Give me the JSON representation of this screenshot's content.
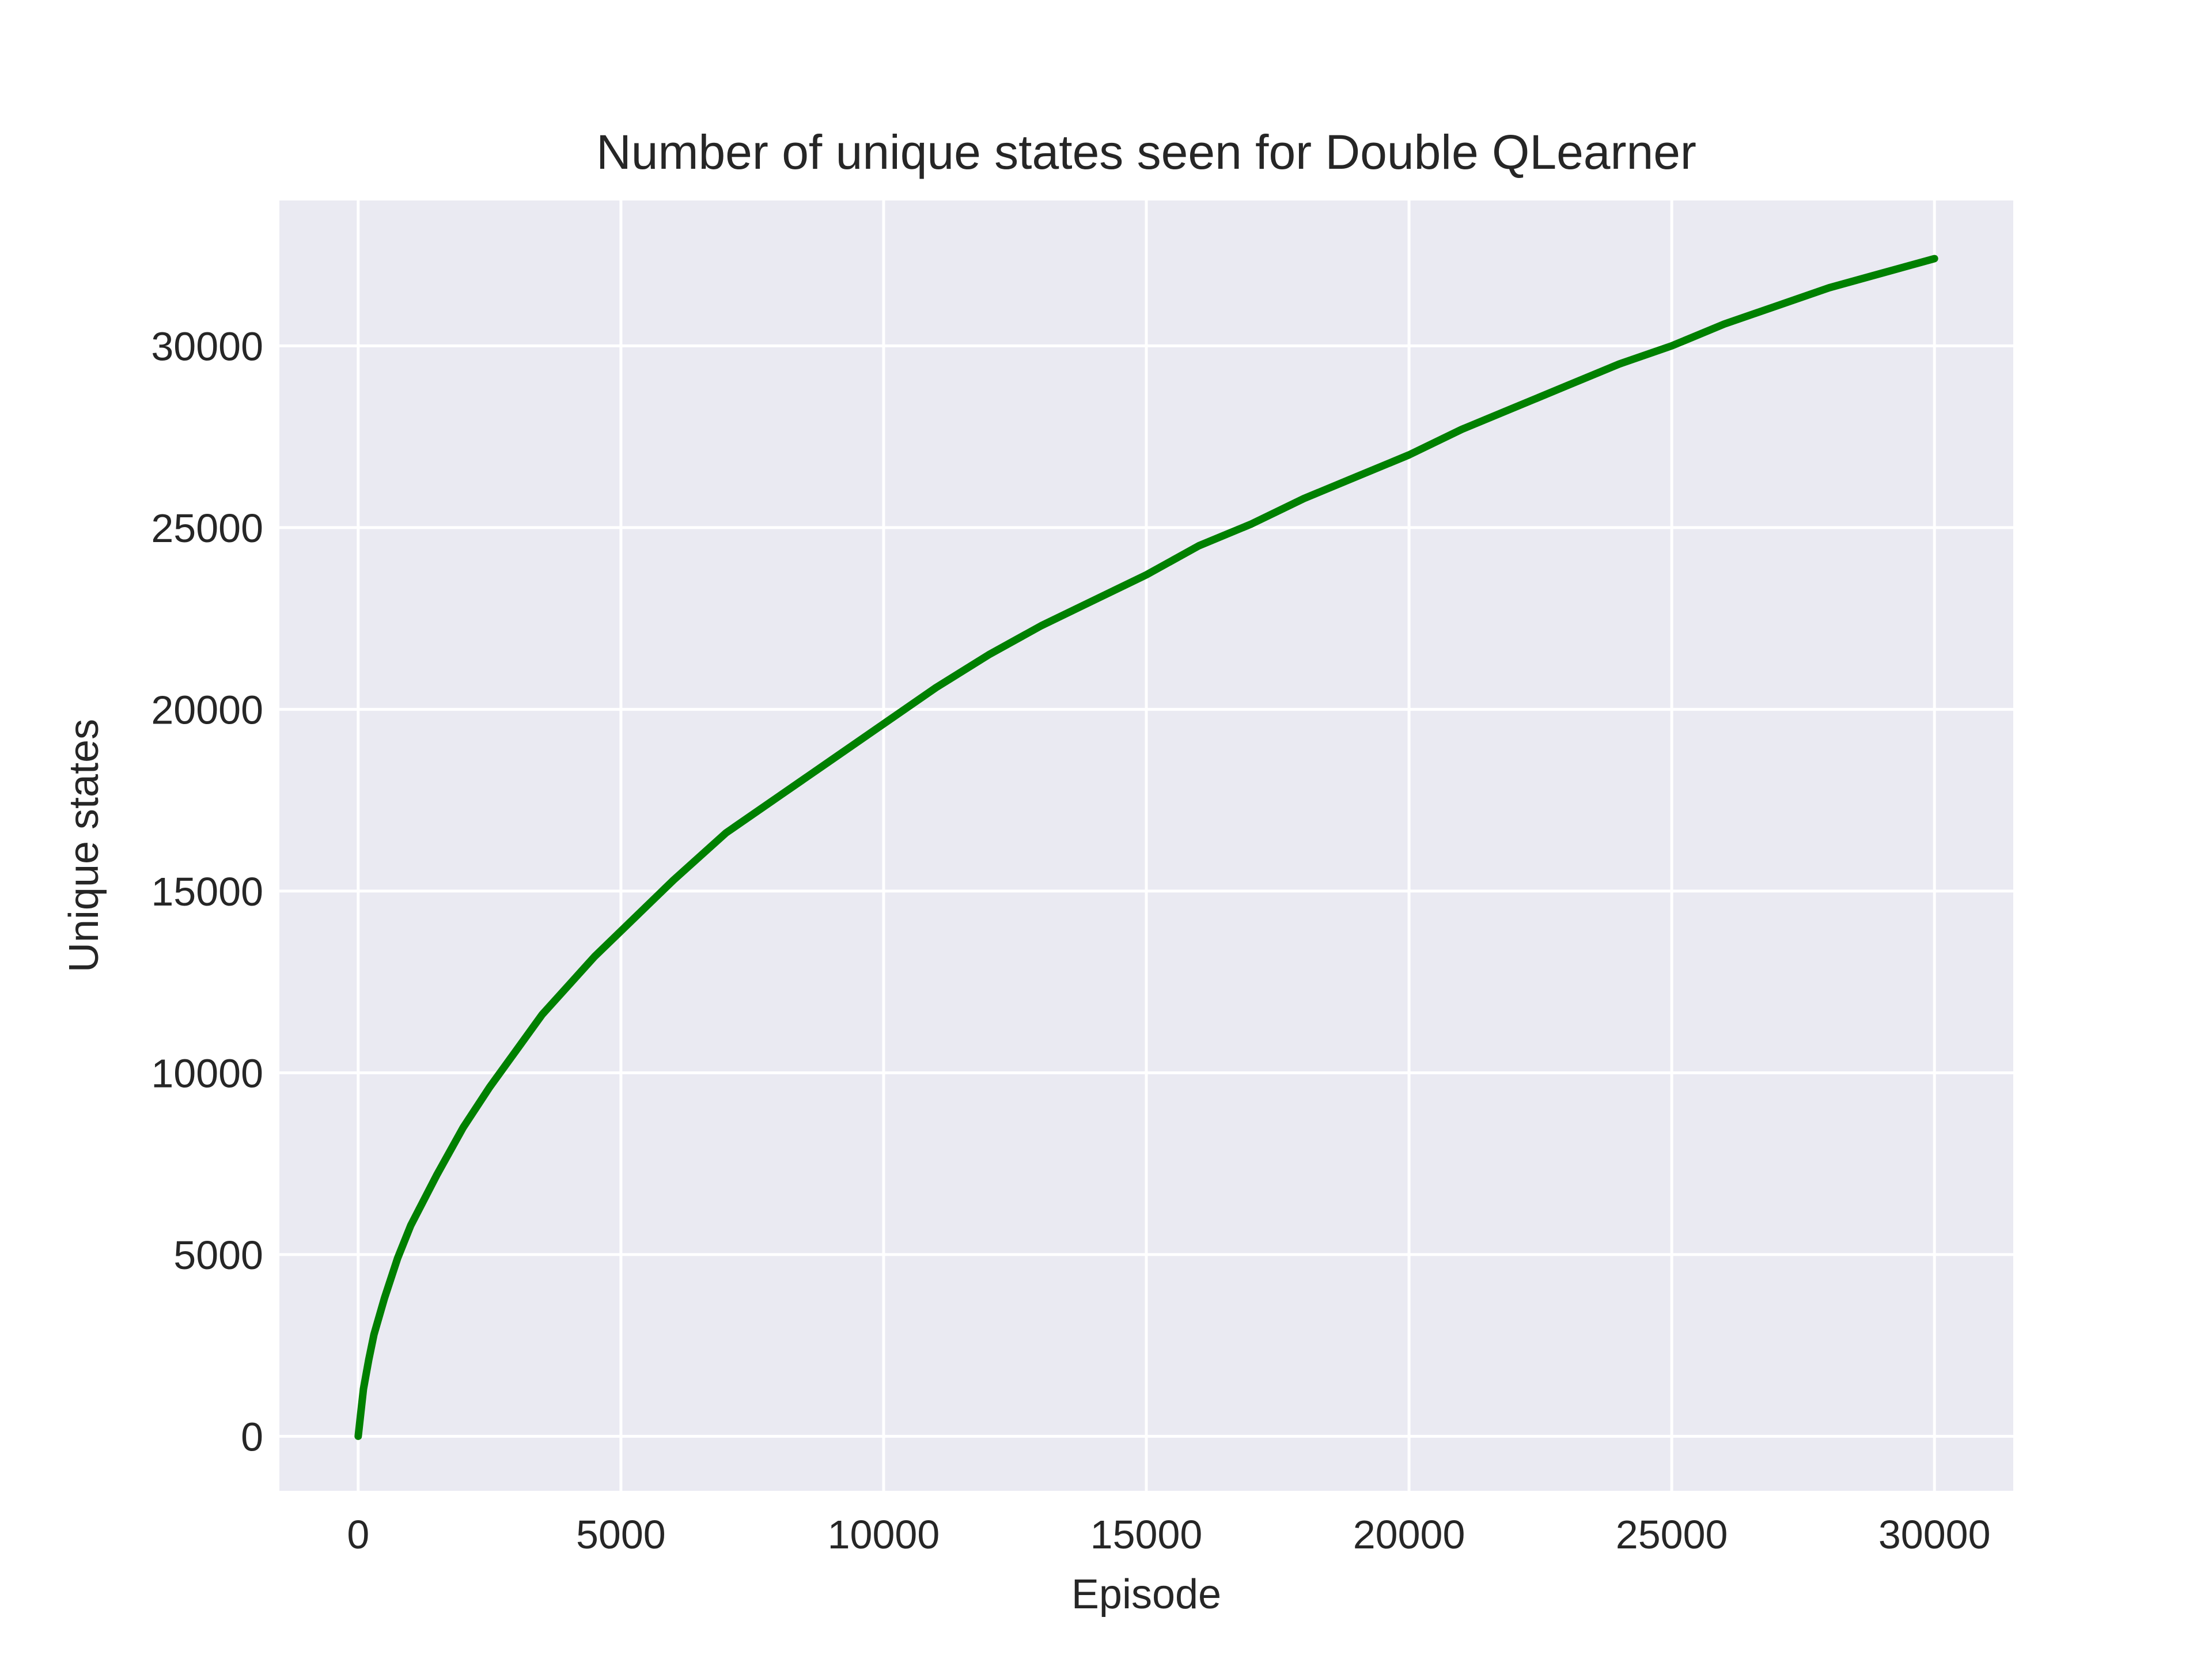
{
  "chart_data": {
    "type": "line",
    "title": "Number of unique states seen for Double QLearner",
    "xlabel": "Episode",
    "ylabel": "Unique states",
    "xlim": [
      -1500,
      31500
    ],
    "ylim": [
      -1500,
      34000
    ],
    "x_ticks": [
      0,
      5000,
      10000,
      15000,
      20000,
      25000,
      30000
    ],
    "y_ticks": [
      0,
      5000,
      10000,
      15000,
      20000,
      25000,
      30000
    ],
    "grid": true,
    "background": "#eaeaf2",
    "series": [
      {
        "color": "#008000",
        "x": [
          0,
          100,
          200,
          300,
          500,
          750,
          1000,
          1500,
          2000,
          2500,
          3000,
          3500,
          4000,
          4500,
          5000,
          6000,
          7000,
          8000,
          9000,
          10000,
          11000,
          12000,
          13000,
          14000,
          15000,
          16000,
          17000,
          18000,
          19000,
          20000,
          21000,
          22000,
          23000,
          24000,
          25000,
          26000,
          27000,
          28000,
          29000,
          30000
        ],
        "y": [
          0,
          1300,
          2100,
          2800,
          3800,
          4900,
          5800,
          7200,
          8500,
          9600,
          10600,
          11600,
          12400,
          13200,
          13900,
          15300,
          16600,
          17600,
          18600,
          19600,
          20600,
          21500,
          22300,
          23000,
          23700,
          24500,
          25100,
          25800,
          26400,
          27000,
          27700,
          28300,
          28900,
          29500,
          30000,
          30600,
          31100,
          31600,
          32000,
          32400
        ]
      }
    ]
  }
}
